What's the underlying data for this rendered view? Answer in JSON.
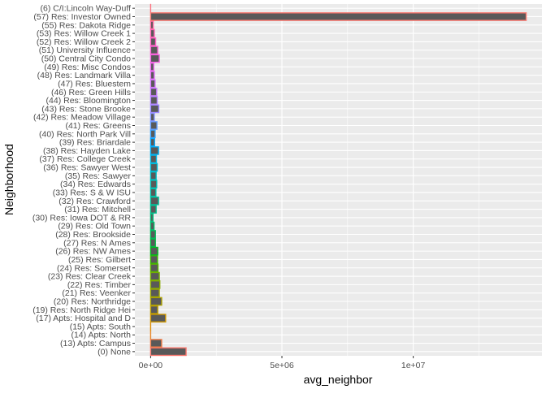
{
  "chart_data": {
    "type": "bar",
    "orientation": "horizontal",
    "xlabel": "avg_neighbor",
    "ylabel": "Neighborhood",
    "xlim": [
      -600000,
      14900000
    ],
    "x_ticks": [
      {
        "value": 0,
        "label": "0e+00"
      },
      {
        "value": 5000000,
        "label": "5e+06"
      },
      {
        "value": 10000000,
        "label": "1e+07"
      }
    ],
    "grid": true,
    "legend": "none",
    "panel_color": "#EBEBEB",
    "bar_fill": "#595959",
    "categories": [
      "(0) None",
      "(13) Apts: Campus",
      "(14) Apts: North",
      "(15) Apts: South",
      "(17) Apts: Hospital and D",
      "(19) Res: North Ridge Hei",
      "(20) Res: Northridge",
      "(21) Res: Veenker",
      "(22) Res: Timber",
      "(23) Res: Clear Creek",
      "(24) Res: Somerset",
      "(25) Res: Gilbert",
      "(26) Res: NW Ames",
      "(27) Res: N Ames",
      "(28) Res: Brookside",
      "(29) Res: Old Town",
      "(30) Res: Iowa DOT & RR",
      "(31) Res: Mitchell",
      "(32) Res: Crawford",
      "(33) Res: S & W ISU",
      "(34) Res: Edwards",
      "(35) Res: Sawyer",
      "(36) Res: Sawyer West",
      "(37) Res: College Creek",
      "(38) Res: Hayden Lake",
      "(39) Res: Briardale",
      "(40) Res: North Park Vill",
      "(41) Res: Greens",
      "(42) Res: Meadow Village",
      "(43) Res: Stone Brooke",
      "(44) Res: Bloomington",
      "(46) Res: Green Hills",
      "(47) Res: Bluestem",
      "(48) Res: Landmark Villa",
      "(49) Res: Misc Condos",
      "(50) Central City Condo",
      "(51) University Influence",
      "(52) Res: Willow Creek 2",
      "(53) Res: Willow Creek 1",
      "(55) Res: Dakota Ridge",
      "(57) Res: Investor Owned",
      "(6) C/I:Lincoln Way-Duff"
    ],
    "values": [
      1350000,
      420000,
      0,
      0,
      570000,
      270000,
      420000,
      330000,
      350000,
      330000,
      280000,
      260000,
      270000,
      180000,
      180000,
      130000,
      90000,
      210000,
      300000,
      200000,
      230000,
      210000,
      250000,
      220000,
      300000,
      150000,
      170000,
      240000,
      140000,
      310000,
      250000,
      230000,
      170000,
      140000,
      120000,
      330000,
      270000,
      190000,
      140000,
      100000,
      14300000,
      0
    ],
    "outline_colors": [
      "#F8766D",
      "#F07E4A",
      "#E88526",
      "#DE8C00",
      "#CD9600",
      "#BD9D00",
      "#AEA200",
      "#9DA700",
      "#8AAB00",
      "#74AF00",
      "#5BB300",
      "#39B600",
      "#00B81F",
      "#00BA42",
      "#00BC59",
      "#00BE6C",
      "#00BF7D",
      "#00C08D",
      "#00C19C",
      "#00C1AB",
      "#00C0B8",
      "#00BFC4",
      "#00BCD6",
      "#00B8E7",
      "#00B0F6",
      "#00A9FF",
      "#35A2FF",
      "#619CFF",
      "#8494FF",
      "#9E8AFF",
      "#B385FF",
      "#C77CFF",
      "#D575FE",
      "#E36EF6",
      "#ED68ED",
      "#F564E3",
      "#FA62D4",
      "#FF61C3",
      "#FF63B2",
      "#FF66A0",
      "#F8766D",
      "#FC717F"
    ]
  }
}
